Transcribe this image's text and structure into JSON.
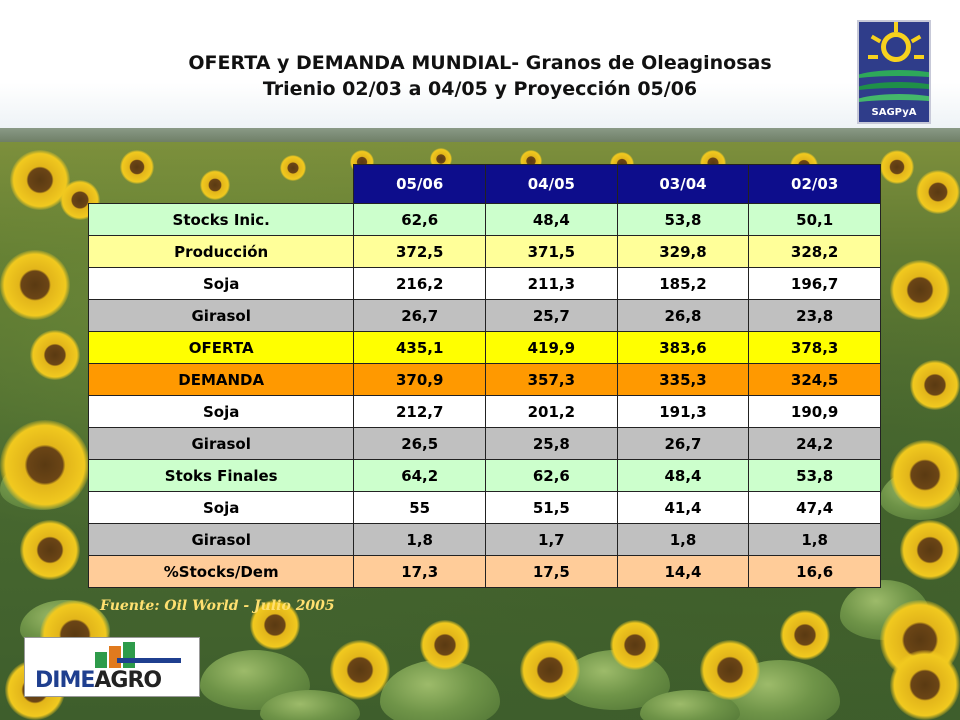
{
  "title_line1": "OFERTA y DEMANDA MUNDIAL- Granos de Oleaginosas",
  "title_line2": "Trienio 02/03 a 04/05 y Proyección 05/06",
  "logo_right_text": "SAGPyA",
  "logo_left_text_1": "DIME",
  "logo_left_text_2": "AGRO",
  "source": "Fuente: Oil World - Julio 2005",
  "table": {
    "headers": [
      "05/06",
      "04/05",
      "03/04",
      "02/03"
    ],
    "rows": [
      {
        "label": "Stocks Inic.",
        "values": [
          "62,6",
          "48,4",
          "53,8",
          "50,1"
        ],
        "color": "#ccffcc"
      },
      {
        "label": "Producción",
        "values": [
          "372,5",
          "371,5",
          "329,8",
          "328,2"
        ],
        "color": "#ffff99"
      },
      {
        "label": "Soja",
        "values": [
          "216,2",
          "211,3",
          "185,2",
          "196,7"
        ],
        "color": "#ffffff"
      },
      {
        "label": "Girasol",
        "values": [
          "26,7",
          "25,7",
          "26,8",
          "23,8"
        ],
        "color": "#c0c0c0"
      },
      {
        "label": "OFERTA",
        "values": [
          "435,1",
          "419,9",
          "383,6",
          "378,3"
        ],
        "color": "#ffff00"
      },
      {
        "label": "DEMANDA",
        "values": [
          "370,9",
          "357,3",
          "335,3",
          "324,5"
        ],
        "color": "#ff9900"
      },
      {
        "label": "Soja",
        "values": [
          "212,7",
          "201,2",
          "191,3",
          "190,9"
        ],
        "color": "#ffffff"
      },
      {
        "label": "Girasol",
        "values": [
          "26,5",
          "25,8",
          "26,7",
          "24,2"
        ],
        "color": "#c0c0c0"
      },
      {
        "label": "Stoks Finales",
        "values": [
          "64,2",
          "62,6",
          "48,4",
          "53,8"
        ],
        "color": "#ccffcc"
      },
      {
        "label": "Soja",
        "values": [
          "55",
          "51,5",
          "41,4",
          "47,4"
        ],
        "color": "#ffffff"
      },
      {
        "label": "Girasol",
        "values": [
          "1,8",
          "1,7",
          "1,8",
          "1,8"
        ],
        "color": "#c0c0c0"
      },
      {
        "label": "%Stocks/Dem",
        "values": [
          "17,3",
          "17,5",
          "14,4",
          "16,6"
        ],
        "color": "#ffcc99"
      }
    ]
  },
  "colors": {
    "header_bg": "#0d0d8c",
    "source_text": "#ffe070"
  }
}
